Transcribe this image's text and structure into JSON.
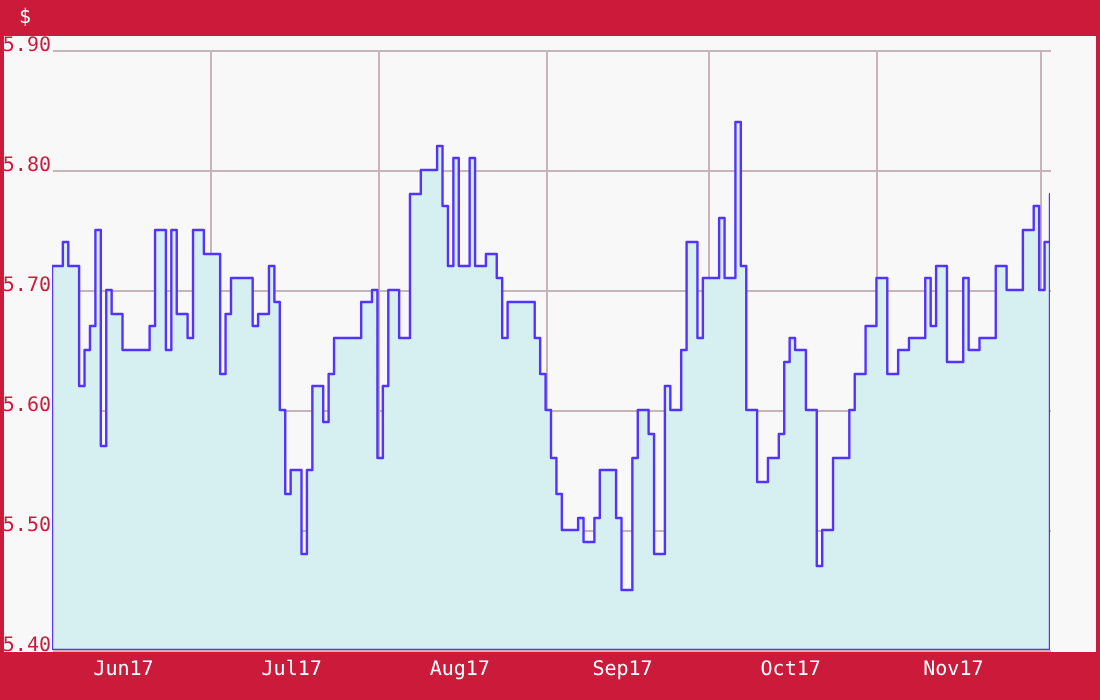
{
  "chart_data": {
    "type": "area",
    "ylabel": "$",
    "x": [
      "2017-06-02",
      "2017-06-04",
      "2017-06-05",
      "2017-06-07",
      "2017-06-08",
      "2017-06-09",
      "2017-06-10",
      "2017-06-11",
      "2017-06-12",
      "2017-06-13",
      "2017-06-15",
      "2017-06-19",
      "2017-06-20",
      "2017-06-21",
      "2017-06-23",
      "2017-06-24",
      "2017-06-25",
      "2017-06-27",
      "2017-06-28",
      "2017-06-30",
      "2017-07-03",
      "2017-07-04",
      "2017-07-05",
      "2017-07-07",
      "2017-07-09",
      "2017-07-10",
      "2017-07-12",
      "2017-07-13",
      "2017-07-14",
      "2017-07-15",
      "2017-07-16",
      "2017-07-18",
      "2017-07-19",
      "2017-07-20",
      "2017-07-22",
      "2017-07-23",
      "2017-07-24",
      "2017-07-25",
      "2017-07-28",
      "2017-07-29",
      "2017-07-31",
      "2017-08-01",
      "2017-08-02",
      "2017-08-03",
      "2017-08-05",
      "2017-08-06",
      "2017-08-07",
      "2017-08-09",
      "2017-08-10",
      "2017-08-12",
      "2017-08-13",
      "2017-08-14",
      "2017-08-15",
      "2017-08-16",
      "2017-08-18",
      "2017-08-19",
      "2017-08-21",
      "2017-08-23",
      "2017-08-24",
      "2017-08-25",
      "2017-08-28",
      "2017-08-30",
      "2017-08-31",
      "2017-09-01",
      "2017-09-02",
      "2017-09-03",
      "2017-09-04",
      "2017-09-06",
      "2017-09-07",
      "2017-09-08",
      "2017-09-10",
      "2017-09-11",
      "2017-09-13",
      "2017-09-14",
      "2017-09-15",
      "2017-09-17",
      "2017-09-18",
      "2017-09-20",
      "2017-09-21",
      "2017-09-23",
      "2017-09-24",
      "2017-09-26",
      "2017-09-27",
      "2017-09-29",
      "2017-09-30",
      "2017-10-02",
      "2017-10-03",
      "2017-10-04",
      "2017-10-06",
      "2017-10-07",
      "2017-10-08",
      "2017-10-09",
      "2017-10-10",
      "2017-10-12",
      "2017-10-14",
      "2017-10-15",
      "2017-10-16",
      "2017-10-17",
      "2017-10-19",
      "2017-10-21",
      "2017-10-22",
      "2017-10-24",
      "2017-10-27",
      "2017-10-28",
      "2017-10-30",
      "2017-11-01",
      "2017-11-03",
      "2017-11-05",
      "2017-11-07",
      "2017-11-10",
      "2017-11-11",
      "2017-11-12",
      "2017-11-14",
      "2017-11-17",
      "2017-11-18",
      "2017-11-20",
      "2017-11-23",
      "2017-11-25",
      "2017-11-27",
      "2017-11-28",
      "2017-11-30",
      "2017-12-01",
      "2017-12-02",
      "2017-12-03"
    ],
    "series": [
      {
        "color": "#5533ff",
        "values": [
          5.72,
          5.74,
          5.72,
          5.62,
          5.65,
          5.67,
          5.75,
          5.57,
          5.7,
          5.68,
          5.65,
          5.65,
          5.67,
          5.75,
          5.65,
          5.75,
          5.68,
          5.66,
          5.75,
          5.73,
          5.63,
          5.68,
          5.71,
          5.71,
          5.67,
          5.68,
          5.72,
          5.69,
          5.6,
          5.53,
          5.55,
          5.48,
          5.55,
          5.62,
          5.59,
          5.63,
          5.66,
          5.66,
          5.66,
          5.69,
          5.7,
          5.56,
          5.62,
          5.7,
          5.66,
          5.66,
          5.78,
          5.8,
          5.8,
          5.82,
          5.77,
          5.72,
          5.81,
          5.72,
          5.81,
          5.72,
          5.73,
          5.71,
          5.66,
          5.69,
          5.69,
          5.66,
          5.63,
          5.6,
          5.56,
          5.53,
          5.5,
          5.5,
          5.51,
          5.49,
          5.51,
          5.55,
          5.55,
          5.51,
          5.45,
          5.56,
          5.6,
          5.58,
          5.48,
          5.62,
          5.6,
          5.65,
          5.74,
          5.66,
          5.71,
          5.71,
          5.76,
          5.71,
          5.84,
          5.72,
          5.6,
          5.6,
          5.54,
          5.56,
          5.58,
          5.64,
          5.66,
          5.65,
          5.6,
          5.47,
          5.5,
          5.56,
          5.6,
          5.63,
          5.67,
          5.71,
          5.63,
          5.65,
          5.66,
          5.71,
          5.67,
          5.72,
          5.64,
          5.71,
          5.65,
          5.66,
          5.72,
          5.7,
          5.7,
          5.75,
          5.77,
          5.7,
          5.74,
          5.78
        ]
      }
    ],
    "xlim": [
      "2017-06-02",
      "2017-12-03"
    ],
    "xticks": [
      {
        "value": "2017-06-15",
        "label": "Jun17"
      },
      {
        "value": "2017-07-01",
        "label": null
      },
      {
        "value": "2017-07-16",
        "label": "Jul17"
      },
      {
        "value": "2017-08-01",
        "label": null
      },
      {
        "value": "2017-08-16",
        "label": "Aug17"
      },
      {
        "value": "2017-09-01",
        "label": null
      },
      {
        "value": "2017-09-15",
        "label": "Sep17"
      },
      {
        "value": "2017-10-01",
        "label": null
      },
      {
        "value": "2017-10-16",
        "label": "Oct17"
      },
      {
        "value": "2017-11-01",
        "label": null
      },
      {
        "value": "2017-11-15",
        "label": "Nov17"
      },
      {
        "value": "2017-12-01",
        "label": null
      }
    ],
    "ylim": [
      5.4,
      5.9
    ],
    "yticks": [
      {
        "value": 5.4,
        "label": "5.40"
      },
      {
        "value": 5.5,
        "label": "5.50"
      },
      {
        "value": 5.6,
        "label": "5.60"
      },
      {
        "value": 5.7,
        "label": "5.70"
      },
      {
        "value": 5.8,
        "label": "5.80"
      },
      {
        "value": 5.9,
        "label": "5.90"
      }
    ],
    "grid": true
  }
}
